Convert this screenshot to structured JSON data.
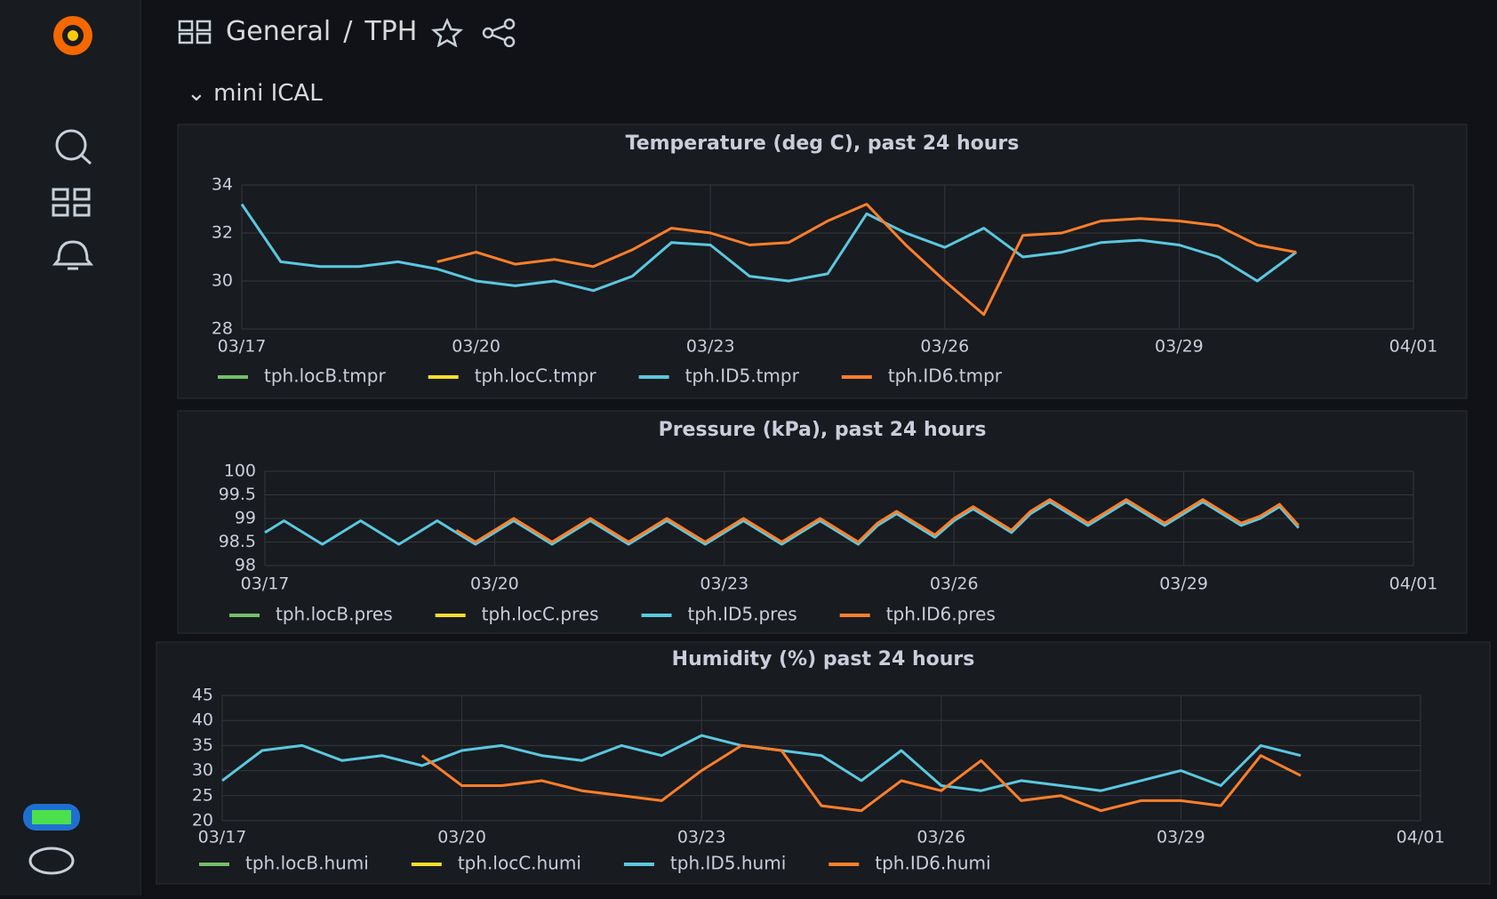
{
  "header": {
    "folder": "General",
    "separator": "/",
    "dashboard": "TPH",
    "row": "mini ICAL"
  },
  "chart_data": [
    {
      "type": "line",
      "title": "Temperature (deg C), past 24 hours",
      "x": [
        "03/17 00:00",
        "03/17 12:00",
        "03/18 00:00",
        "03/18 12:00",
        "03/19 00:00",
        "03/19 12:00",
        "03/20 00:00",
        "03/20 12:00",
        "03/21 00:00",
        "03/21 12:00",
        "03/22 00:00",
        "03/22 12:00",
        "03/23 00:00",
        "03/23 12:00",
        "03/24 00:00",
        "03/24 12:00",
        "03/25 00:00",
        "03/25 12:00",
        "03/26 00:00",
        "03/26 12:00",
        "03/27 00:00",
        "03/27 12:00",
        "03/28 00:00",
        "03/28 12:00",
        "03/29 00:00",
        "03/29 12:00",
        "03/30 00:00",
        "03/30 12:00"
      ],
      "series": [
        {
          "name": "tph.locB.tmpr",
          "color": "#73bf69",
          "values": [
            null,
            null,
            null,
            null,
            null,
            null,
            null,
            null,
            null,
            null,
            null,
            null,
            null,
            null,
            null,
            null,
            null,
            null,
            null,
            null,
            null,
            null,
            null,
            null,
            null,
            null,
            null,
            null
          ]
        },
        {
          "name": "tph.locC.tmpr",
          "color": "#fade2a",
          "values": [
            null,
            null,
            null,
            null,
            null,
            null,
            null,
            null,
            null,
            null,
            null,
            null,
            null,
            null,
            null,
            null,
            null,
            null,
            null,
            null,
            null,
            null,
            null,
            null,
            null,
            null,
            null,
            null
          ]
        },
        {
          "name": "tph.ID5.tmpr",
          "color": "#5ac8e0",
          "values": [
            33.2,
            30.8,
            30.6,
            30.6,
            30.8,
            30.5,
            30.0,
            29.8,
            30.0,
            29.6,
            30.2,
            31.6,
            31.5,
            30.2,
            30.0,
            30.3,
            32.8,
            32.0,
            31.4,
            32.2,
            31.0,
            31.2,
            31.6,
            31.7,
            31.5,
            31.0,
            30.0,
            31.2
          ]
        },
        {
          "name": "tph.ID6.tmpr",
          "color": "#ff7f2a",
          "values": [
            null,
            null,
            null,
            null,
            null,
            30.8,
            31.2,
            30.7,
            30.9,
            30.6,
            31.3,
            32.2,
            32.0,
            31.5,
            31.6,
            32.5,
            33.2,
            31.5,
            30.0,
            28.6,
            31.9,
            32.0,
            32.5,
            32.6,
            32.5,
            32.3,
            31.5,
            31.2
          ]
        }
      ],
      "xlim": [
        "03/17",
        "04/01"
      ],
      "xticks": [
        "03/17",
        "03/20",
        "03/23",
        "03/26",
        "03/29",
        "04/01"
      ],
      "ylim": [
        28,
        34
      ],
      "yticks": [
        28,
        30,
        32,
        34
      ],
      "grid": true
    },
    {
      "type": "line",
      "title": "Pressure (kPa), past 24 hours",
      "x": [
        "03/17 00:00",
        "03/17 06:00",
        "03/17 12:00",
        "03/17 18:00",
        "03/18 00:00",
        "03/18 06:00",
        "03/18 12:00",
        "03/18 18:00",
        "03/19 00:00",
        "03/19 06:00",
        "03/19 12:00",
        "03/19 18:00",
        "03/20 00:00",
        "03/20 06:00",
        "03/20 12:00",
        "03/20 18:00",
        "03/21 00:00",
        "03/21 06:00",
        "03/21 12:00",
        "03/21 18:00",
        "03/22 00:00",
        "03/22 06:00",
        "03/22 12:00",
        "03/22 18:00",
        "03/23 00:00",
        "03/23 06:00",
        "03/23 12:00",
        "03/23 18:00",
        "03/24 00:00",
        "03/24 06:00",
        "03/24 12:00",
        "03/24 18:00",
        "03/25 00:00",
        "03/25 06:00",
        "03/25 12:00",
        "03/25 18:00",
        "03/26 00:00",
        "03/26 06:00",
        "03/26 12:00",
        "03/26 18:00",
        "03/27 00:00",
        "03/27 06:00",
        "03/27 12:00",
        "03/27 18:00",
        "03/28 00:00",
        "03/28 06:00",
        "03/28 12:00",
        "03/28 18:00",
        "03/29 00:00",
        "03/29 06:00",
        "03/29 12:00",
        "03/29 18:00",
        "03/30 00:00",
        "03/30 06:00",
        "03/30 12:00"
      ],
      "series": [
        {
          "name": "tph.locB.pres",
          "color": "#73bf69",
          "values": [
            null,
            null,
            null,
            null,
            null,
            null,
            null,
            null,
            null,
            null,
            null,
            null,
            null,
            null,
            null,
            null,
            null,
            null,
            null,
            null,
            null,
            null,
            null,
            null,
            null,
            null,
            null,
            null,
            null,
            null,
            null,
            null,
            null,
            null,
            null,
            null,
            null,
            null,
            null,
            null,
            null,
            null,
            null,
            null,
            null,
            null,
            null,
            null,
            null,
            null,
            null,
            null,
            null,
            null,
            null
          ]
        },
        {
          "name": "tph.locC.pres",
          "color": "#fade2a",
          "values": [
            null,
            null,
            null,
            null,
            null,
            null,
            null,
            null,
            null,
            null,
            null,
            null,
            null,
            null,
            null,
            null,
            null,
            null,
            null,
            null,
            null,
            null,
            null,
            null,
            null,
            null,
            null,
            null,
            null,
            null,
            null,
            null,
            null,
            null,
            null,
            null,
            null,
            null,
            null,
            null,
            null,
            null,
            null,
            null,
            null,
            null,
            null,
            null,
            null,
            null,
            null,
            null,
            null,
            null,
            null
          ]
        },
        {
          "name": "tph.ID5.pres",
          "color": "#5ac8e0",
          "values": [
            98.7,
            98.95,
            98.7,
            98.45,
            98.7,
            98.95,
            98.7,
            98.45,
            98.7,
            98.95,
            98.7,
            98.45,
            98.7,
            98.95,
            98.7,
            98.45,
            98.7,
            98.95,
            98.7,
            98.45,
            98.7,
            98.95,
            98.7,
            98.45,
            98.7,
            98.95,
            98.7,
            98.45,
            98.7,
            98.95,
            98.7,
            98.45,
            98.85,
            99.1,
            98.85,
            98.6,
            98.95,
            99.2,
            98.95,
            98.7,
            99.1,
            99.35,
            99.1,
            98.85,
            99.1,
            99.35,
            99.1,
            98.85,
            99.1,
            99.35,
            99.1,
            98.85,
            99.0,
            99.25,
            98.8
          ]
        },
        {
          "name": "tph.ID6.pres",
          "color": "#ff7f2a",
          "values": [
            null,
            null,
            null,
            null,
            null,
            null,
            null,
            null,
            null,
            null,
            98.75,
            98.5,
            98.75,
            99.0,
            98.75,
            98.5,
            98.75,
            99.0,
            98.75,
            98.5,
            98.75,
            99.0,
            98.75,
            98.5,
            98.75,
            99.0,
            98.75,
            98.5,
            98.75,
            99.0,
            98.75,
            98.5,
            98.9,
            99.15,
            98.9,
            98.65,
            99.0,
            99.25,
            99.0,
            98.75,
            99.15,
            99.4,
            99.15,
            98.9,
            99.15,
            99.4,
            99.15,
            98.9,
            99.15,
            99.4,
            99.15,
            98.9,
            99.05,
            99.3,
            98.85
          ]
        }
      ],
      "xlim": [
        "03/17",
        "04/01"
      ],
      "xticks": [
        "03/17",
        "03/20",
        "03/23",
        "03/26",
        "03/29",
        "04/01"
      ],
      "ylim": [
        98,
        100
      ],
      "yticks": [
        98,
        98.5,
        99,
        99.5,
        100
      ],
      "grid": true
    },
    {
      "type": "line",
      "title": "Humidity (%) past 24 hours",
      "x": [
        "03/17 00:00",
        "03/17 12:00",
        "03/18 00:00",
        "03/18 12:00",
        "03/19 00:00",
        "03/19 12:00",
        "03/20 00:00",
        "03/20 12:00",
        "03/21 00:00",
        "03/21 12:00",
        "03/22 00:00",
        "03/22 12:00",
        "03/23 00:00",
        "03/23 12:00",
        "03/24 00:00",
        "03/24 12:00",
        "03/25 00:00",
        "03/25 12:00",
        "03/26 00:00",
        "03/26 12:00",
        "03/27 00:00",
        "03/27 12:00",
        "03/28 00:00",
        "03/28 12:00",
        "03/29 00:00",
        "03/29 12:00",
        "03/30 00:00",
        "03/30 12:00"
      ],
      "series": [
        {
          "name": "tph.locB.humi",
          "color": "#73bf69",
          "values": [
            null,
            null,
            null,
            null,
            null,
            null,
            null,
            null,
            null,
            null,
            null,
            null,
            null,
            null,
            null,
            null,
            null,
            null,
            null,
            null,
            null,
            null,
            null,
            null,
            null,
            null,
            null,
            null
          ]
        },
        {
          "name": "tph.locC.humi",
          "color": "#fade2a",
          "values": [
            null,
            null,
            null,
            null,
            null,
            null,
            null,
            null,
            null,
            null,
            null,
            null,
            null,
            null,
            null,
            null,
            null,
            null,
            null,
            null,
            null,
            null,
            null,
            null,
            null,
            null,
            null,
            null
          ]
        },
        {
          "name": "tph.ID5.humi",
          "color": "#5ac8e0",
          "values": [
            28,
            34,
            35,
            32,
            33,
            31,
            34,
            35,
            33,
            32,
            35,
            33,
            37,
            35,
            34,
            33,
            28,
            34,
            27,
            26,
            28,
            27,
            26,
            28,
            30,
            27,
            35,
            33
          ]
        },
        {
          "name": "tph.ID6.humi",
          "color": "#ff7f2a",
          "values": [
            null,
            null,
            null,
            null,
            null,
            33,
            27,
            27,
            28,
            26,
            25,
            24,
            30,
            35,
            34,
            23,
            22,
            28,
            26,
            32,
            24,
            25,
            22,
            24,
            24,
            23,
            33,
            29
          ]
        }
      ],
      "xlim": [
        "03/17",
        "04/01"
      ],
      "xticks": [
        "03/17",
        "03/20",
        "03/23",
        "03/26",
        "03/29",
        "04/01"
      ],
      "ylim": [
        20,
        45
      ],
      "yticks": [
        20,
        25,
        30,
        35,
        40,
        45
      ],
      "grid": true
    }
  ]
}
